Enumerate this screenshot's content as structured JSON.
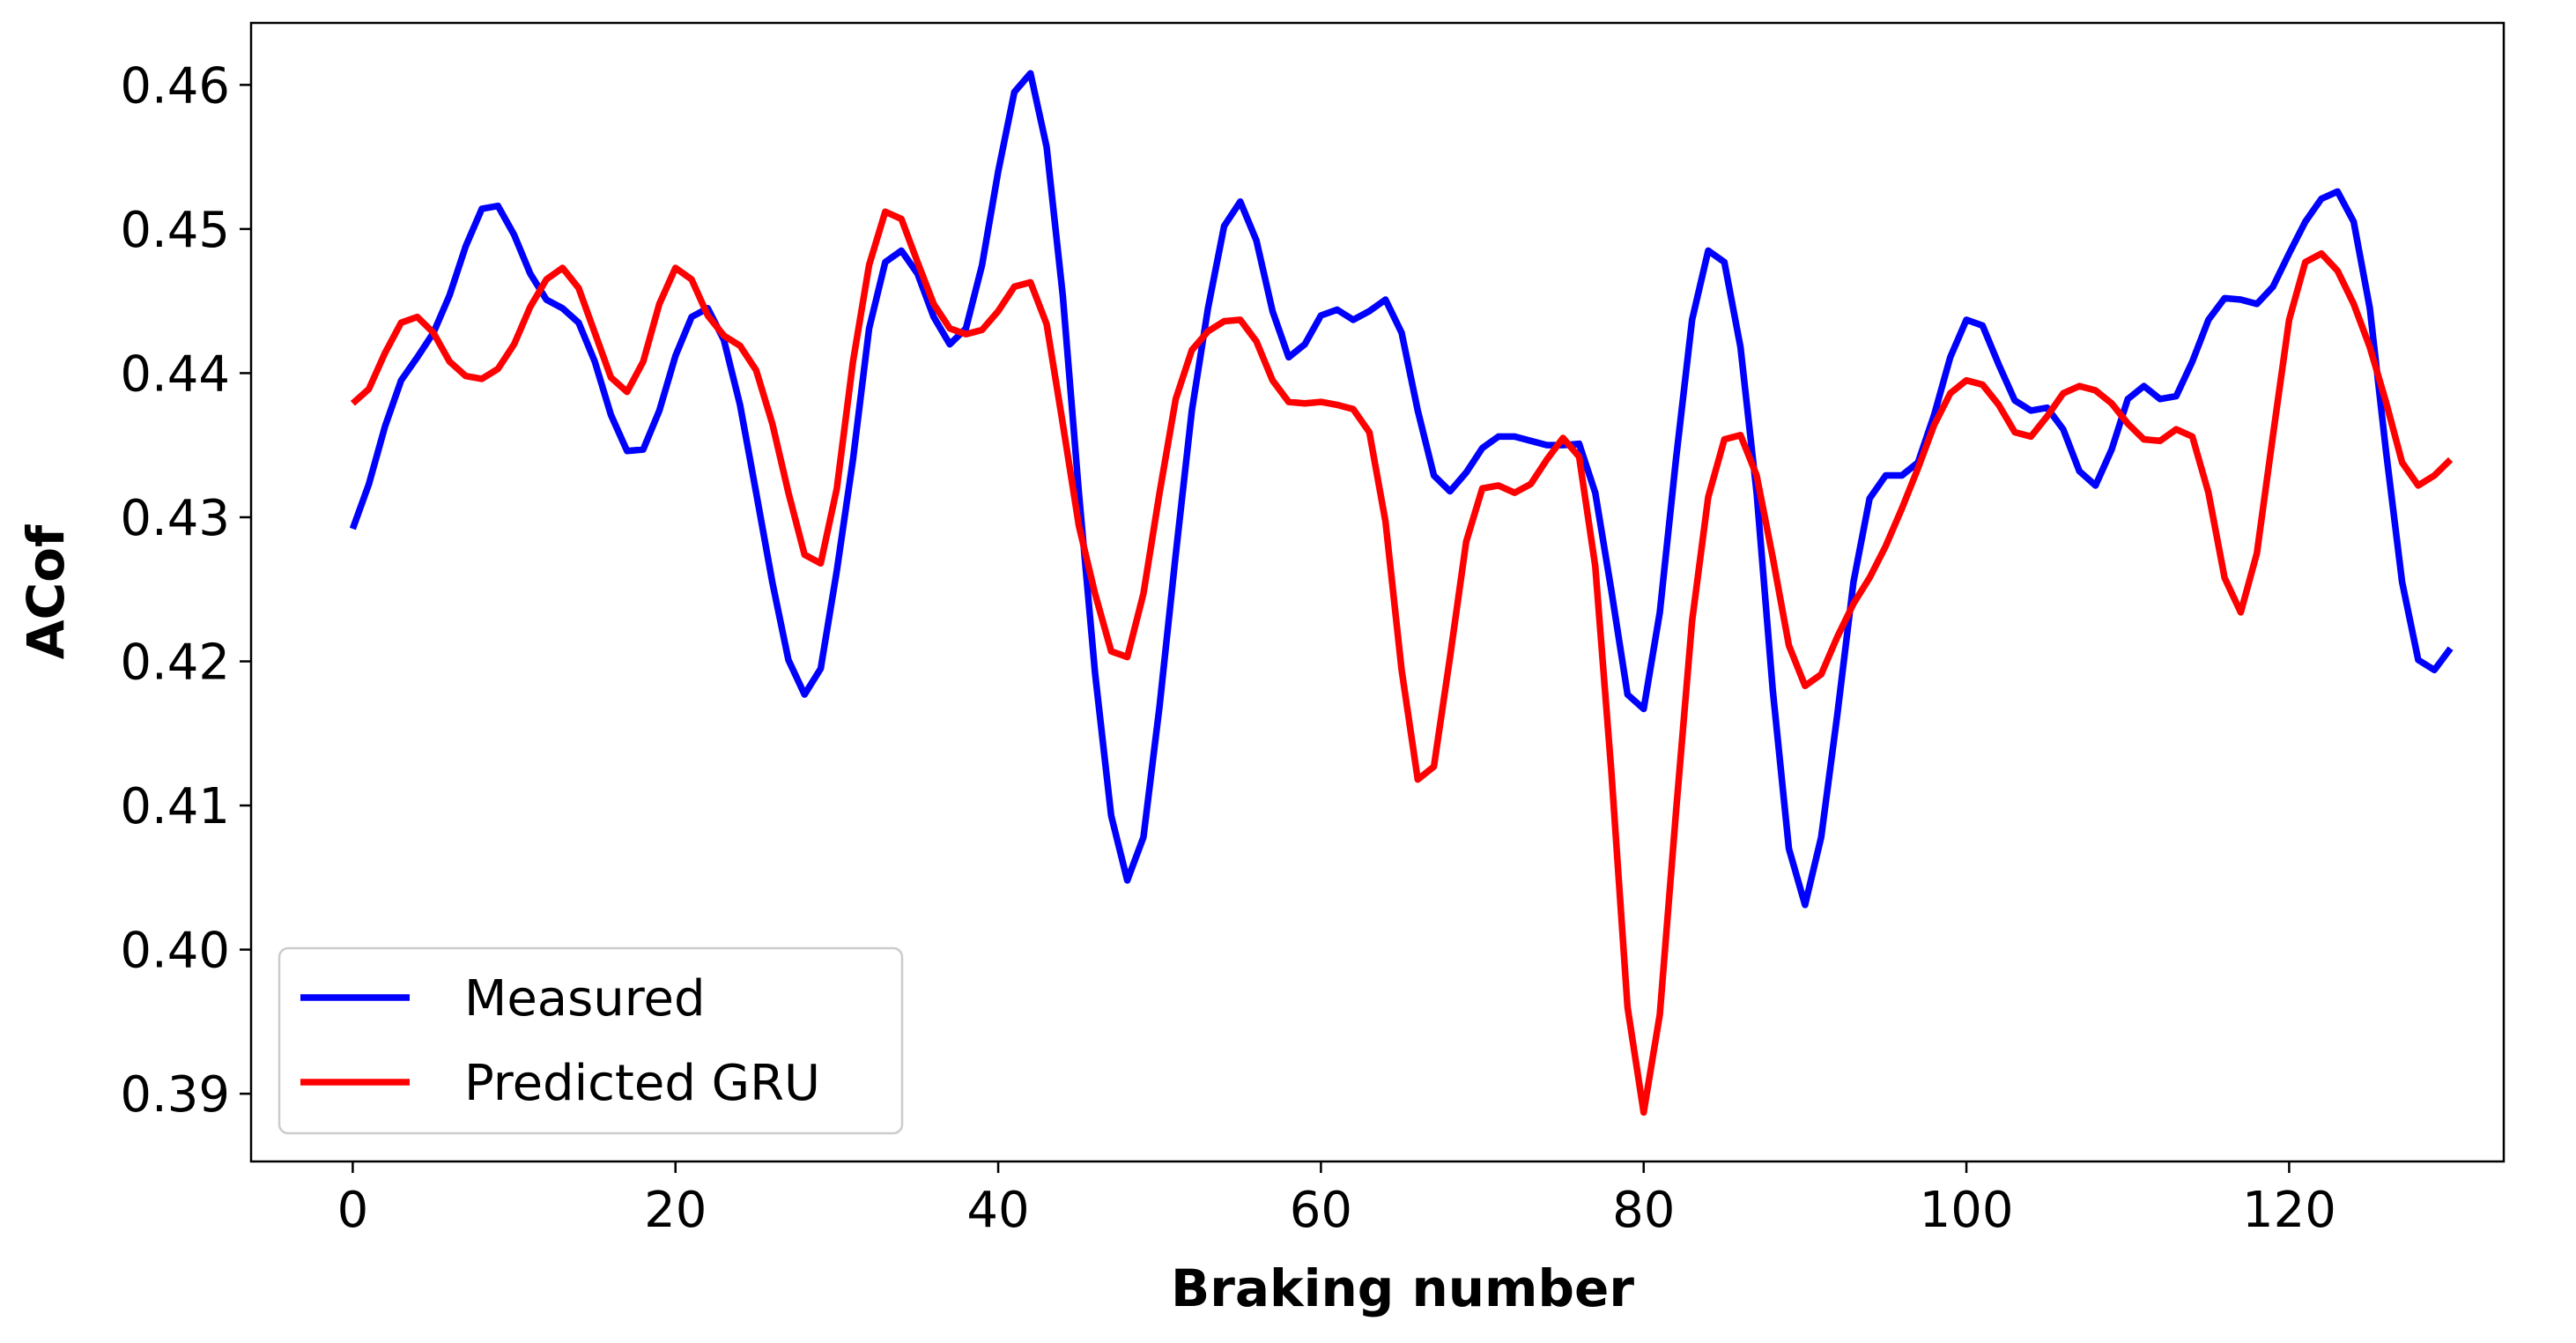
{
  "chart_data": {
    "type": "line",
    "xlabel": "Braking number",
    "ylabel": "ACof",
    "x": [
      0,
      1,
      2,
      3,
      4,
      5,
      6,
      7,
      8,
      9,
      10,
      11,
      12,
      13,
      14,
      15,
      16,
      17,
      18,
      19,
      20,
      21,
      22,
      23,
      24,
      25,
      26,
      27,
      28,
      29,
      30,
      31,
      32,
      33,
      34,
      35,
      36,
      37,
      38,
      39,
      40,
      41,
      42,
      43,
      44,
      45,
      46,
      47,
      48,
      49,
      50,
      51,
      52,
      53,
      54,
      55,
      56,
      57,
      58,
      59,
      60,
      61,
      62,
      63,
      64,
      65,
      66,
      67,
      68,
      69,
      70,
      71,
      72,
      73,
      74,
      75,
      76,
      77,
      78,
      79,
      80,
      81,
      82,
      83,
      84,
      85,
      86,
      87,
      88,
      89,
      90,
      91,
      92,
      93,
      94,
      95,
      96,
      97,
      98,
      99,
      100,
      101,
      102,
      103,
      104,
      105,
      106,
      107,
      108,
      109,
      110,
      111,
      112,
      113,
      114,
      115,
      116,
      117,
      118,
      119,
      120,
      121,
      122,
      123,
      124,
      125,
      126,
      127,
      128,
      129,
      130
    ],
    "series": [
      {
        "name": "Measured",
        "color": "#0000ff",
        "values": [
          0.4292,
          0.4323,
          0.4363,
          0.4395,
          0.4411,
          0.4428,
          0.4454,
          0.4488,
          0.4514,
          0.4516,
          0.4496,
          0.4469,
          0.4451,
          0.4445,
          0.4435,
          0.4408,
          0.4371,
          0.4346,
          0.4347,
          0.4374,
          0.4412,
          0.4439,
          0.4445,
          0.4423,
          0.4378,
          0.4317,
          0.4255,
          0.4201,
          0.4177,
          0.4195,
          0.4263,
          0.434,
          0.4431,
          0.4477,
          0.4485,
          0.4469,
          0.4439,
          0.442,
          0.4431,
          0.4475,
          0.454,
          0.4595,
          0.4608,
          0.4557,
          0.4454,
          0.4317,
          0.4192,
          0.4093,
          0.4048,
          0.4078,
          0.4169,
          0.4274,
          0.4374,
          0.4445,
          0.4502,
          0.4519,
          0.4492,
          0.4443,
          0.4411,
          0.442,
          0.444,
          0.4444,
          0.4437,
          0.4443,
          0.4451,
          0.4428,
          0.4374,
          0.4329,
          0.4318,
          0.4331,
          0.4348,
          0.4356,
          0.4356,
          0.4353,
          0.435,
          0.435,
          0.4351,
          0.4317,
          0.4249,
          0.4177,
          0.4167,
          0.4234,
          0.434,
          0.4437,
          0.4485,
          0.4477,
          0.4418,
          0.4317,
          0.418,
          0.407,
          0.4031,
          0.4078,
          0.4163,
          0.4255,
          0.4313,
          0.4329,
          0.4329,
          0.4338,
          0.4371,
          0.4411,
          0.4437,
          0.4433,
          0.4406,
          0.4381,
          0.4374,
          0.4376,
          0.4361,
          0.4332,
          0.4322,
          0.4347,
          0.4382,
          0.4391,
          0.4382,
          0.4384,
          0.4408,
          0.4437,
          0.4452,
          0.4451,
          0.4448,
          0.446,
          0.4483,
          0.4505,
          0.4521,
          0.4526,
          0.4505,
          0.4445,
          0.4346,
          0.4255,
          0.4201,
          0.4194,
          0.4209
        ]
      },
      {
        "name": "Predicted GRU",
        "color": "#ff0000",
        "values": [
          0.4379,
          0.4389,
          0.4414,
          0.4435,
          0.4439,
          0.4428,
          0.4408,
          0.4398,
          0.4396,
          0.4403,
          0.442,
          0.4446,
          0.4465,
          0.4473,
          0.4459,
          0.4428,
          0.4397,
          0.4387,
          0.4408,
          0.4448,
          0.4473,
          0.4465,
          0.444,
          0.4426,
          0.4419,
          0.4402,
          0.4365,
          0.4317,
          0.4274,
          0.4268,
          0.432,
          0.4408,
          0.4475,
          0.4512,
          0.4507,
          0.4477,
          0.4448,
          0.4431,
          0.4427,
          0.443,
          0.4443,
          0.446,
          0.4463,
          0.4434,
          0.4365,
          0.4294,
          0.4247,
          0.4207,
          0.4203,
          0.4247,
          0.4317,
          0.4382,
          0.4416,
          0.4429,
          0.4436,
          0.4437,
          0.4422,
          0.4395,
          0.438,
          0.4379,
          0.438,
          0.4378,
          0.4375,
          0.4359,
          0.4297,
          0.4194,
          0.4118,
          0.4127,
          0.4203,
          0.4283,
          0.432,
          0.4322,
          0.4317,
          0.4323,
          0.434,
          0.4355,
          0.4342,
          0.4266,
          0.4123,
          0.396,
          0.3887,
          0.3955,
          0.4095,
          0.4228,
          0.4314,
          0.4354,
          0.4357,
          0.4329,
          0.4272,
          0.4211,
          0.4183,
          0.4191,
          0.4217,
          0.424,
          0.4258,
          0.428,
          0.4306,
          0.4334,
          0.4364,
          0.4386,
          0.4395,
          0.4392,
          0.4378,
          0.4359,
          0.4356,
          0.437,
          0.4386,
          0.4391,
          0.4388,
          0.4379,
          0.4365,
          0.4354,
          0.4353,
          0.4361,
          0.4356,
          0.4317,
          0.4258,
          0.4234,
          0.4275,
          0.4357,
          0.4437,
          0.4477,
          0.4483,
          0.4471,
          0.4448,
          0.4418,
          0.438,
          0.4338,
          0.4322,
          0.4329,
          0.434
        ]
      }
    ],
    "xlim": [
      -6.3,
      133.3
    ],
    "ylim": [
      0.3853,
      0.4643
    ],
    "xticks": [
      0,
      20,
      40,
      60,
      80,
      100,
      120
    ],
    "yticks": [
      0.39,
      {
        "value": 0.4,
        "label": "0.40"
      },
      0.41,
      0.42,
      0.43,
      0.44,
      0.45,
      0.46
    ],
    "legend": "lower left",
    "grid": false
  }
}
